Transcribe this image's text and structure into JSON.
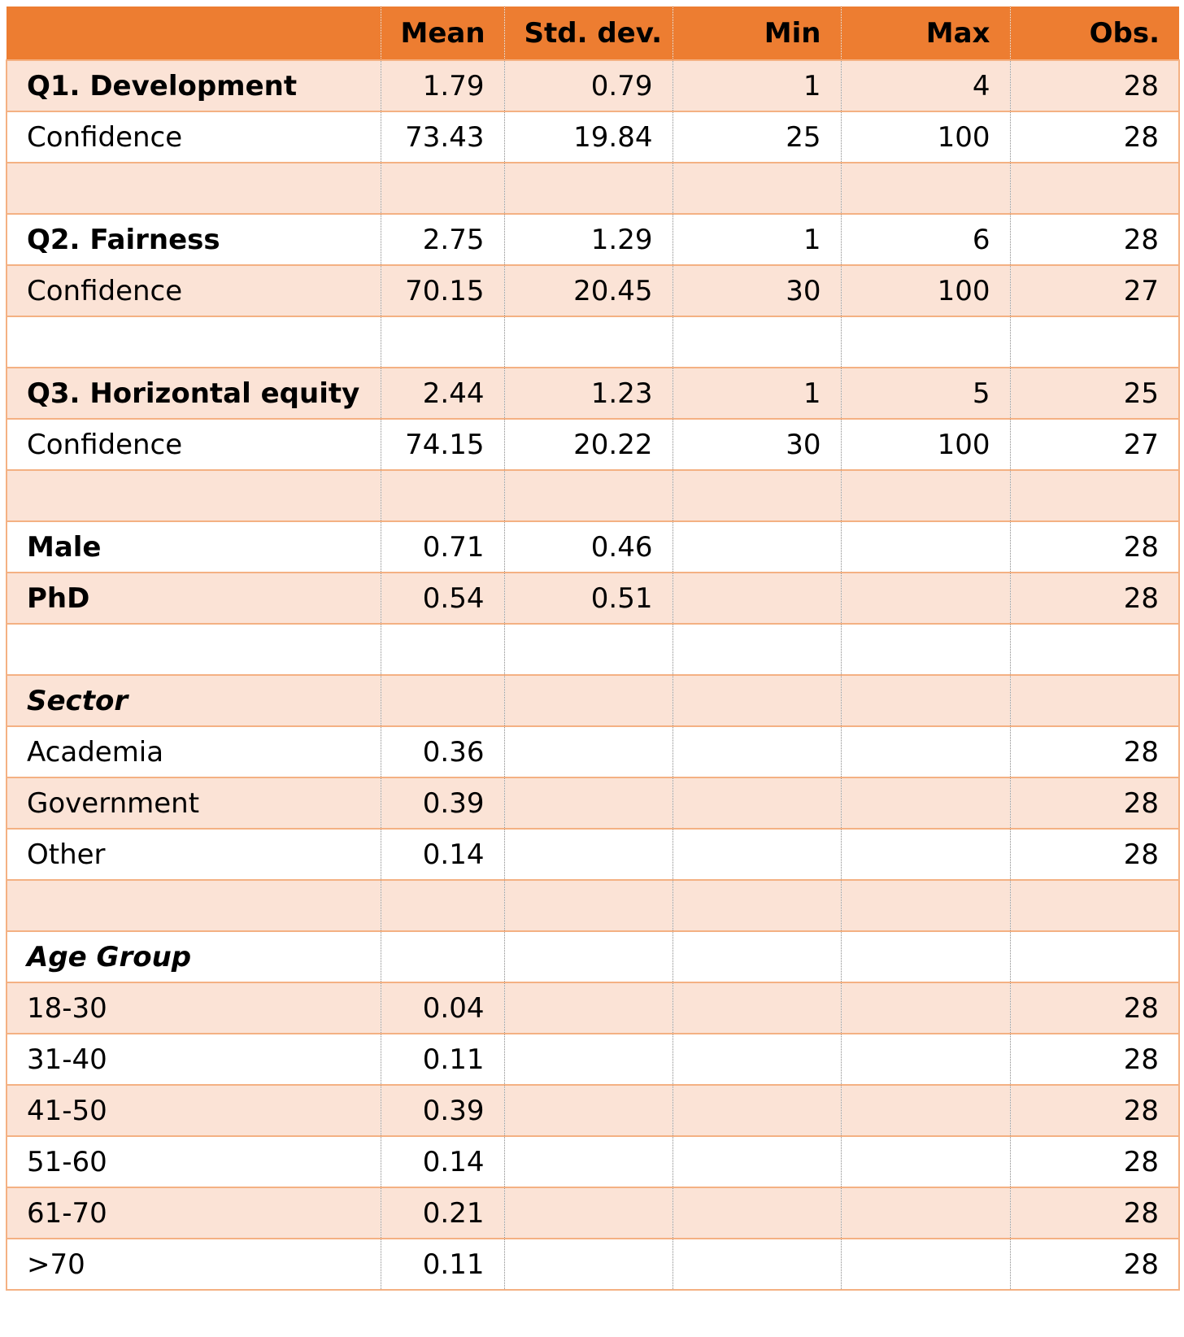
{
  "table": {
    "headers": [
      "",
      "Mean",
      "Std. dev.",
      "Min",
      "Max",
      "Obs."
    ],
    "rows": [
      {
        "label": "Q1. Development",
        "style": "bold",
        "values": [
          "1.79",
          "0.79",
          "1",
          "4",
          "28"
        ]
      },
      {
        "label": "Confidence",
        "style": "normal",
        "values": [
          "73.43",
          "19.84",
          "25",
          "100",
          "28"
        ]
      },
      {
        "label": "",
        "style": "normal",
        "values": [
          "",
          "",
          "",
          "",
          ""
        ]
      },
      {
        "label": "Q2. Fairness",
        "style": "bold",
        "values": [
          "2.75",
          "1.29",
          "1",
          "6",
          "28"
        ]
      },
      {
        "label": "Confidence",
        "style": "normal",
        "values": [
          "70.15",
          "20.45",
          "30",
          "100",
          "27"
        ]
      },
      {
        "label": "",
        "style": "normal",
        "values": [
          "",
          "",
          "",
          "",
          ""
        ]
      },
      {
        "label": "Q3. Horizontal equity",
        "style": "bold",
        "values": [
          "2.44",
          "1.23",
          "1",
          "5",
          "25"
        ]
      },
      {
        "label": "Confidence",
        "style": "normal",
        "values": [
          "74.15",
          "20.22",
          "30",
          "100",
          "27"
        ]
      },
      {
        "label": "",
        "style": "normal",
        "values": [
          "",
          "",
          "",
          "",
          ""
        ]
      },
      {
        "label": "Male",
        "style": "bold",
        "values": [
          "0.71",
          "0.46",
          "",
          "",
          "28"
        ]
      },
      {
        "label": "PhD",
        "style": "bold",
        "values": [
          "0.54",
          "0.51",
          "",
          "",
          "28"
        ]
      },
      {
        "label": "",
        "style": "normal",
        "values": [
          "",
          "",
          "",
          "",
          ""
        ]
      },
      {
        "label": "Sector",
        "style": "italic",
        "values": [
          "",
          "",
          "",
          "",
          ""
        ]
      },
      {
        "label": "Academia",
        "style": "normal",
        "values": [
          "0.36",
          "",
          "",
          "",
          "28"
        ]
      },
      {
        "label": "Government",
        "style": "normal",
        "values": [
          "0.39",
          "",
          "",
          "",
          "28"
        ]
      },
      {
        "label": "Other",
        "style": "normal",
        "values": [
          "0.14",
          "",
          "",
          "",
          "28"
        ]
      },
      {
        "label": "",
        "style": "normal",
        "values": [
          "",
          "",
          "",
          "",
          ""
        ]
      },
      {
        "label": "Age Group",
        "style": "italic",
        "values": [
          "",
          "",
          "",
          "",
          ""
        ]
      },
      {
        "label": "18-30",
        "style": "normal",
        "values": [
          "0.04",
          "",
          "",
          "",
          "28"
        ]
      },
      {
        "label": "31-40",
        "style": "normal",
        "values": [
          "0.11",
          "",
          "",
          "",
          "28"
        ]
      },
      {
        "label": "41-50",
        "style": "normal",
        "values": [
          "0.39",
          "",
          "",
          "",
          "28"
        ]
      },
      {
        "label": "51-60",
        "style": "normal",
        "values": [
          "0.14",
          "",
          "",
          "",
          "28"
        ]
      },
      {
        "label": "61-70",
        "style": "normal",
        "values": [
          "0.21",
          "",
          "",
          "",
          "28"
        ]
      },
      {
        "label": ">70",
        "style": "normal",
        "values": [
          "0.11",
          "",
          "",
          "",
          "28"
        ]
      }
    ]
  }
}
